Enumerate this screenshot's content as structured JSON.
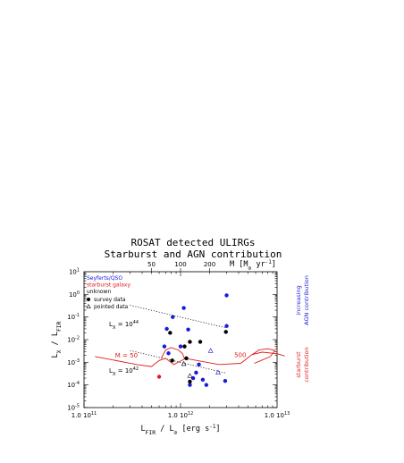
{
  "chart_data": {
    "type": "scatter",
    "title": "ROSAT detected ULIRGs",
    "subtitle": "Starburst and AGN contribution",
    "xscale": "log",
    "yscale": "log",
    "xlim": [
      100000000000.0,
      10000000000000.0
    ],
    "ylim": [
      1e-05,
      10
    ],
    "xlabel": {
      "main": "L",
      "sub": "FIR",
      "rest": " / L",
      "sub2": "⊙",
      "unit": " [erg s",
      "sup": "-1",
      "close": "]"
    },
    "ylabel": {
      "main": "L",
      "sub": "X",
      "rest": " / L",
      "sub2": "FIR"
    },
    "x_ticks": [
      {
        "value": 100000000000.0,
        "label": "1.0 10",
        "sup": "11"
      },
      {
        "value": 1000000000000.0,
        "label": "1.0 10",
        "sup": "12"
      },
      {
        "value": 10000000000000.0,
        "label": "1.0 10",
        "sup": "13"
      }
    ],
    "y_ticks": [
      {
        "value": 10,
        "label": "10",
        "sup": "1"
      },
      {
        "value": 1,
        "label": "10",
        "sup": "0"
      },
      {
        "value": 0.1,
        "label": "10",
        "sup": "-1"
      },
      {
        "value": 0.01,
        "label": "10",
        "sup": "-2"
      },
      {
        "value": 0.001,
        "label": "10",
        "sup": "-3"
      },
      {
        "value": 0.0001,
        "label": "10",
        "sup": "-4"
      },
      {
        "value": 1e-05,
        "label": "10",
        "sup": "-5"
      }
    ],
    "top_axis": {
      "label": "M [M",
      "sub": "⊙",
      "rest": " yr",
      "sup": "-1",
      "close": "]",
      "ticks": [
        {
          "value": 50,
          "x": 500000000000.0,
          "label": "50"
        },
        {
          "value": 100,
          "x": 1000000000000.0,
          "label": "100"
        },
        {
          "value": 200,
          "x": 2000000000000.0,
          "label": "200"
        }
      ]
    },
    "legend": {
      "placement": "top-left",
      "class_entries": [
        {
          "label": "Seyferts/QSO",
          "color": "#1a1adb"
        },
        {
          "label": "starburst galaxy",
          "color": "#e01b1b"
        },
        {
          "label": "unknown",
          "color": "#000000"
        }
      ],
      "marker_entries": [
        {
          "label": "survey data",
          "marker": "filled-circle"
        },
        {
          "label": "pointed data",
          "marker": "open-triangle"
        }
      ]
    },
    "series": [
      {
        "name": "Seyferts/QSO",
        "color": "#1a1adb",
        "survey": [
          {
            "x": 680000000000.0,
            "y": 0.005
          },
          {
            "x": 720000000000.0,
            "y": 0.03
          },
          {
            "x": 830000000000.0,
            "y": 0.1
          },
          {
            "x": 1080000000000.0,
            "y": 0.25
          },
          {
            "x": 1200000000000.0,
            "y": 0.028
          },
          {
            "x": 1000000000000.0,
            "y": 0.005
          },
          {
            "x": 750000000000.0,
            "y": 0.0025
          },
          {
            "x": 1350000000000.0,
            "y": 0.0002
          },
          {
            "x": 1450000000000.0,
            "y": 0.00035
          },
          {
            "x": 1550000000000.0,
            "y": 0.0008
          },
          {
            "x": 1700000000000.0,
            "y": 0.00017
          },
          {
            "x": 3000000000000.0,
            "y": 0.9
          },
          {
            "x": 3000000000000.0,
            "y": 0.04
          },
          {
            "x": 2900000000000.0,
            "y": 0.00015
          },
          {
            "x": 1250000000000.0,
            "y": 0.0001
          },
          {
            "x": 1850000000000.0,
            "y": 0.0001
          }
        ],
        "pointed": [
          {
            "x": 2050000000000.0,
            "y": 0.0032
          },
          {
            "x": 2450000000000.0,
            "y": 0.00035
          }
        ]
      },
      {
        "name": "starburst galaxy",
        "color": "#e01b1b",
        "survey": [
          {
            "x": 600000000000.0,
            "y": 0.00023
          }
        ],
        "pointed": []
      },
      {
        "name": "unknown",
        "color": "#000000",
        "survey": [
          {
            "x": 780000000000.0,
            "y": 0.02
          },
          {
            "x": 1100000000000.0,
            "y": 0.005
          },
          {
            "x": 1250000000000.0,
            "y": 0.008
          },
          {
            "x": 1600000000000.0,
            "y": 0.008
          },
          {
            "x": 820000000000.0,
            "y": 0.0012
          },
          {
            "x": 1150000000000.0,
            "y": 0.0015
          },
          {
            "x": 1250000000000.0,
            "y": 0.00014
          },
          {
            "x": 2950000000000.0,
            "y": 0.022
          }
        ],
        "pointed": [
          {
            "x": 1080000000000.0,
            "y": 0.00085
          },
          {
            "x": 1250000000000.0,
            "y": 0.00025
          }
        ]
      }
    ],
    "reference_lines": [
      {
        "label": "L",
        "sub": "X",
        "eq": " = 10",
        "sup": "44",
        "points": [
          [
            300000000000.0,
            0.33
          ],
          [
            3000000000000.0,
            0.033
          ]
        ],
        "style": "dotted"
      },
      {
        "label": "L",
        "sub": "X",
        "eq": " = 10",
        "sup": "42",
        "points": [
          [
            300000000000.0,
            0.0033
          ],
          [
            3000000000000.0,
            0.00033
          ]
        ],
        "style": "dotted"
      }
    ],
    "starburst_curves": {
      "color": "#e01b1b",
      "left": [
        [
          130000000000.0,
          0.0018
        ],
        [
          350000000000.0,
          0.0008
        ],
        [
          500000000000.0,
          0.00065
        ],
        [
          600000000000.0,
          0.0012
        ],
        [
          700000000000.0,
          0.0015
        ],
        [
          850000000000.0,
          0.0008
        ],
        [
          1100000000000.0,
          0.0014
        ]
      ],
      "left_loop": [
        [
          630000000000.0,
          0.0015
        ],
        [
          700000000000.0,
          0.0035
        ],
        [
          800000000000.0,
          0.0045
        ],
        [
          950000000000.0,
          0.0035
        ],
        [
          1050000000000.0,
          0.0024
        ],
        [
          1100000000000.0,
          0.0014
        ]
      ],
      "right": [
        [
          1200000000000.0,
          0.0014
        ],
        [
          2500000000000.0,
          0.0008
        ],
        [
          4200000000000.0,
          0.0009
        ],
        [
          5500000000000.0,
          0.0022
        ],
        [
          7000000000000.0,
          0.0028
        ],
        [
          10000000000000.0,
          0.0024
        ],
        [
          12000000000000.0,
          0.0019
        ]
      ],
      "right_loop": [
        [
          5500000000000.0,
          0.0022
        ],
        [
          6500000000000.0,
          0.0035
        ],
        [
          8000000000000.0,
          0.004
        ],
        [
          9500000000000.0,
          0.0033
        ],
        [
          8500000000000.0,
          0.0018
        ],
        [
          6500000000000.0,
          0.0011
        ],
        [
          5800000000000.0,
          0.0009
        ]
      ],
      "labels": [
        {
          "text": "M = 50",
          "x": 210000000000.0,
          "y": 0.0016
        },
        {
          "text": "500",
          "x": 3600000000000.0,
          "y": 0.0017
        }
      ]
    },
    "side_annotations": {
      "agn": {
        "text": [
          "increasing",
          "AGN contribution"
        ],
        "color": "#1a1adb"
      },
      "starburst": {
        "text": [
          "starburst",
          "contribution"
        ],
        "color": "#e01b1b"
      }
    }
  }
}
